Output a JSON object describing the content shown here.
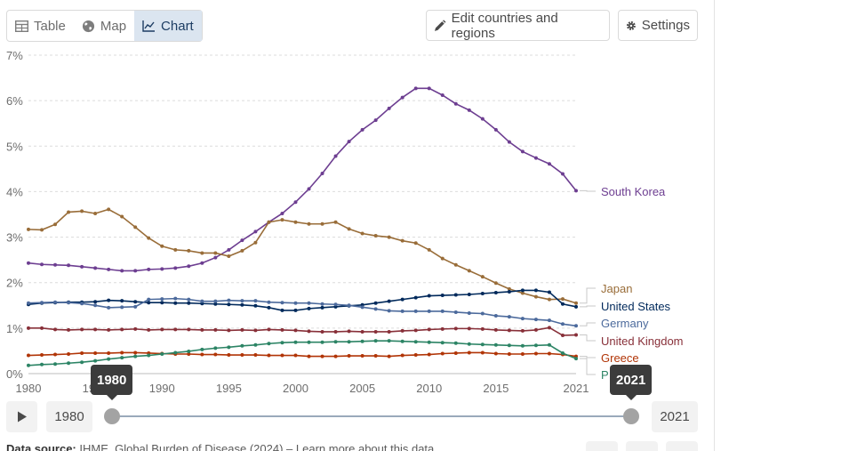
{
  "tabs": [
    {
      "label": "Table",
      "icon": "table-icon",
      "active": false
    },
    {
      "label": "Map",
      "icon": "globe-icon",
      "active": false
    },
    {
      "label": "Chart",
      "icon": "line-chart-icon",
      "active": true
    }
  ],
  "buttons": {
    "edit": "Edit countries and regions",
    "settings": "Settings"
  },
  "timeline": {
    "start_label": "1980",
    "end_label": "2021",
    "start_tooltip": "1980",
    "end_tooltip": "2021"
  },
  "source": {
    "prefix": "Data source:",
    "text": "IHME, Global Burden of Disease (2024) – Learn more about this data"
  },
  "chart_data": {
    "type": "line",
    "title": "",
    "xlabel": "",
    "ylabel": "",
    "xlim": [
      1980,
      2021
    ],
    "ylim": [
      0,
      7
    ],
    "x_ticks": [
      "1980",
      "1985",
      "1990",
      "1995",
      "2000",
      "2005",
      "2010",
      "2015",
      "2021"
    ],
    "y_ticks": [
      "0%",
      "1%",
      "2%",
      "3%",
      "4%",
      "5%",
      "6%",
      "7%"
    ],
    "grid": "horizontal dotted",
    "legend": "right, labels at line ends",
    "x": [
      1980,
      1981,
      1982,
      1983,
      1984,
      1985,
      1986,
      1987,
      1988,
      1989,
      1990,
      1991,
      1992,
      1993,
      1994,
      1995,
      1996,
      1997,
      1998,
      1999,
      2000,
      2001,
      2002,
      2003,
      2004,
      2005,
      2006,
      2007,
      2008,
      2009,
      2010,
      2011,
      2012,
      2013,
      2014,
      2015,
      2016,
      2017,
      2018,
      2019,
      2020,
      2021
    ],
    "series": [
      {
        "name": "South Korea",
        "color": "#6d3e91",
        "values": [
          2.43,
          2.4,
          2.39,
          2.38,
          2.35,
          2.32,
          2.29,
          2.26,
          2.26,
          2.29,
          2.3,
          2.32,
          2.36,
          2.43,
          2.55,
          2.72,
          2.93,
          3.12,
          3.33,
          3.52,
          3.77,
          4.06,
          4.4,
          4.78,
          5.1,
          5.36,
          5.57,
          5.83,
          6.07,
          6.27,
          6.27,
          6.12,
          5.93,
          5.79,
          5.6,
          5.36,
          5.09,
          4.88,
          4.74,
          4.61,
          4.39,
          4.02
        ]
      },
      {
        "name": "Japan",
        "color": "#996d39",
        "values": [
          3.17,
          3.16,
          3.28,
          3.55,
          3.57,
          3.52,
          3.61,
          3.45,
          3.22,
          2.98,
          2.8,
          2.72,
          2.7,
          2.65,
          2.65,
          2.58,
          2.7,
          2.88,
          3.33,
          3.38,
          3.33,
          3.29,
          3.29,
          3.33,
          3.18,
          3.08,
          3.03,
          3.0,
          2.92,
          2.87,
          2.72,
          2.53,
          2.39,
          2.26,
          2.13,
          1.99,
          1.86,
          1.77,
          1.69,
          1.63,
          1.64,
          1.55
        ]
      },
      {
        "name": "United States",
        "color": "#00295b",
        "values": [
          1.52,
          1.55,
          1.56,
          1.57,
          1.57,
          1.58,
          1.61,
          1.6,
          1.58,
          1.56,
          1.56,
          1.55,
          1.55,
          1.54,
          1.53,
          1.52,
          1.51,
          1.49,
          1.45,
          1.39,
          1.39,
          1.43,
          1.45,
          1.47,
          1.49,
          1.51,
          1.55,
          1.59,
          1.63,
          1.67,
          1.71,
          1.72,
          1.73,
          1.74,
          1.76,
          1.78,
          1.8,
          1.83,
          1.83,
          1.79,
          1.53,
          1.47
        ]
      },
      {
        "name": "Germany",
        "color": "#4c6a9c",
        "values": [
          1.55,
          1.56,
          1.57,
          1.56,
          1.54,
          1.5,
          1.45,
          1.46,
          1.47,
          1.63,
          1.64,
          1.65,
          1.63,
          1.59,
          1.59,
          1.61,
          1.6,
          1.6,
          1.57,
          1.56,
          1.55,
          1.55,
          1.53,
          1.52,
          1.5,
          1.46,
          1.42,
          1.38,
          1.37,
          1.37,
          1.37,
          1.37,
          1.35,
          1.33,
          1.32,
          1.27,
          1.25,
          1.21,
          1.19,
          1.17,
          1.09,
          1.05
        ]
      },
      {
        "name": "United Kingdom",
        "color": "#883039",
        "values": [
          1.0,
          1.0,
          0.97,
          0.96,
          0.97,
          0.97,
          0.96,
          0.97,
          0.98,
          0.96,
          0.97,
          0.97,
          0.97,
          0.96,
          0.96,
          0.95,
          0.96,
          0.95,
          0.97,
          0.96,
          0.95,
          0.93,
          0.92,
          0.92,
          0.93,
          0.92,
          0.92,
          0.92,
          0.94,
          0.95,
          0.97,
          0.98,
          0.99,
          0.99,
          0.98,
          0.96,
          0.95,
          0.94,
          0.96,
          1.01,
          0.84,
          0.85
        ]
      },
      {
        "name": "Greece",
        "color": "#b13507",
        "values": [
          0.4,
          0.41,
          0.42,
          0.43,
          0.45,
          0.45,
          0.45,
          0.46,
          0.46,
          0.45,
          0.44,
          0.43,
          0.43,
          0.42,
          0.42,
          0.41,
          0.41,
          0.41,
          0.4,
          0.4,
          0.4,
          0.38,
          0.38,
          0.38,
          0.39,
          0.39,
          0.39,
          0.38,
          0.4,
          0.41,
          0.42,
          0.44,
          0.45,
          0.46,
          0.46,
          0.44,
          0.43,
          0.43,
          0.44,
          0.44,
          0.42,
          0.38
        ]
      },
      {
        "name": "P",
        "color": "#2c8465",
        "values": [
          0.18,
          0.2,
          0.21,
          0.23,
          0.25,
          0.28,
          0.32,
          0.35,
          0.38,
          0.4,
          0.43,
          0.46,
          0.49,
          0.53,
          0.56,
          0.58,
          0.61,
          0.63,
          0.66,
          0.68,
          0.69,
          0.69,
          0.69,
          0.7,
          0.7,
          0.71,
          0.72,
          0.72,
          0.71,
          0.7,
          0.69,
          0.68,
          0.67,
          0.65,
          0.64,
          0.63,
          0.62,
          0.61,
          0.62,
          0.63,
          0.45,
          0.33
        ]
      }
    ]
  }
}
